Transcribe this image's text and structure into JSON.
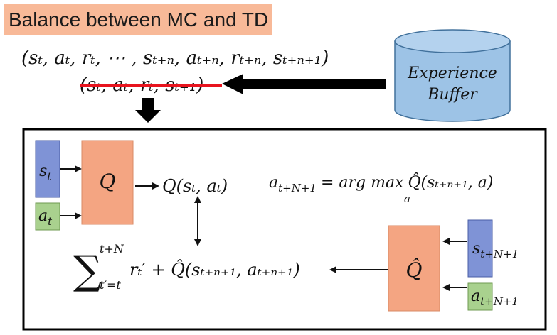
{
  "title": "Balance between MC and TD",
  "sequence_n_step": "(sₜ, aₜ, rₜ, ⋯ , sₜ₊ₙ, aₜ₊ₙ, rₜ₊ₙ, sₜ₊ₙ₊₁)",
  "sequence_one_step": "(sₜ, aₜ, rₜ, sₜ₊₁)",
  "buffer": {
    "line1": "Experience",
    "line2": "Buffer"
  },
  "network": {
    "state_input": "s",
    "state_sub": "t",
    "action_input": "a",
    "action_sub": "t",
    "q_label": "Q",
    "q_output": "Q(sₜ, aₜ)",
    "target_q_label": "Q̂",
    "next_state_input": "s",
    "next_state_sub": "t+N+1",
    "next_action_input": "a",
    "next_action_sub": "t+N+1"
  },
  "formula_action": {
    "lhs": "a",
    "lhs_sub": "t+N+1",
    "rhs": "= arg max",
    "max_sub": "a",
    "tail": "Q̂(sₜ₊ₙ₊₁, a)"
  },
  "formula_target": {
    "sum_symbol": "∑",
    "sum_upper": "t+N",
    "sum_lower": "t′=t",
    "term": "rₜ′ + Q̂(sₜ₊ₙ₊₁, aₜ₊ₙ₊₁)"
  },
  "colors": {
    "title_bg": "#f8b998",
    "q_box": "#f4a582",
    "state_box": "#7f93d6",
    "action_box": "#a9d18e",
    "buffer_fill": "#9dc3e6",
    "strike": "#e8141e"
  },
  "icons": [
    "down-arrow-icon",
    "left-arrow-icon",
    "cylinder-icon"
  ]
}
